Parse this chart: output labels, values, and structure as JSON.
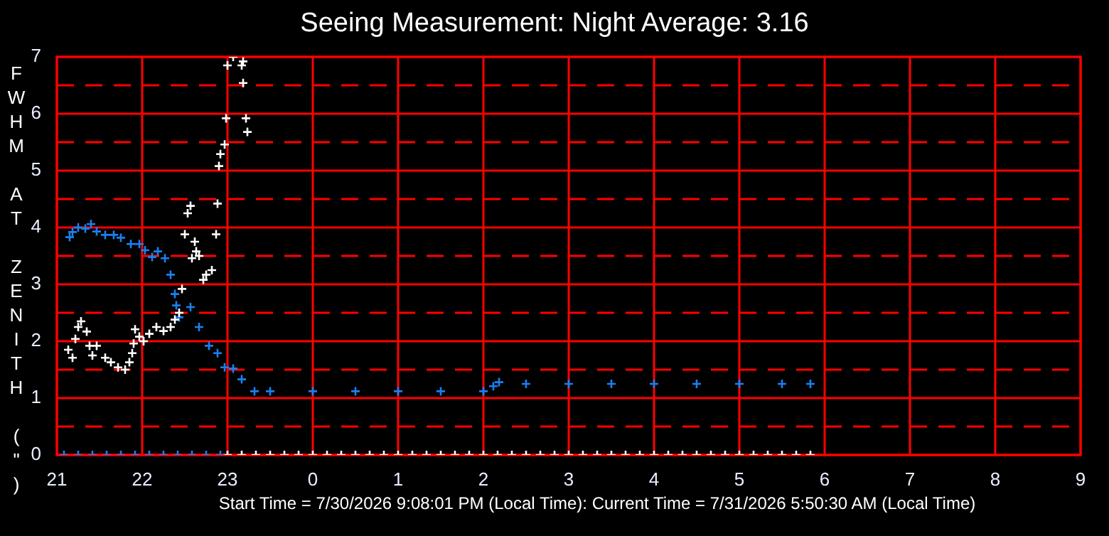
{
  "chart_data": {
    "type": "scatter",
    "title": "Seeing Measurement: Night Average: 3.16",
    "ylabel": "FWHM AT ZENITH (\")",
    "annotations": [
      "Start Time = 7/30/2026 9:08:01 PM (Local Time): Current Time = 7/31/2026 5:50:30 AM (Local Time)"
    ],
    "xlim": [
      "2026-07-30T21:00",
      "2026-07-31T09:00"
    ],
    "xticks": [
      {
        "value": "2026-07-30T21:00",
        "label": "21"
      },
      {
        "value": "2026-07-30T22:00",
        "label": "22"
      },
      {
        "value": "2026-07-30T23:00",
        "label": "23"
      },
      {
        "value": "2026-07-31T00:00",
        "label": "0"
      },
      {
        "value": "2026-07-31T01:00",
        "label": "1"
      },
      {
        "value": "2026-07-31T02:00",
        "label": "2"
      },
      {
        "value": "2026-07-31T03:00",
        "label": "3"
      },
      {
        "value": "2026-07-31T04:00",
        "label": "4"
      },
      {
        "value": "2026-07-31T05:00",
        "label": "5"
      },
      {
        "value": "2026-07-31T06:00",
        "label": "6"
      },
      {
        "value": "2026-07-31T07:00",
        "label": "7"
      },
      {
        "value": "2026-07-31T08:00",
        "label": "8"
      },
      {
        "value": "2026-07-31T09:00",
        "label": "9"
      }
    ],
    "ylim": [
      0,
      7
    ],
    "yticks": [
      0,
      {
        "value": 0.5,
        "label": null
      },
      1,
      {
        "value": 1.5,
        "label": null
      },
      2,
      {
        "value": 2.5,
        "label": null
      },
      3,
      {
        "value": 3.5,
        "label": null
      },
      4,
      {
        "value": 4.5,
        "label": null
      },
      5,
      {
        "value": 5.5,
        "label": null
      },
      6,
      {
        "value": 6.5,
        "label": null
      },
      7
    ],
    "grid": true,
    "marker": "cross",
    "series": [
      {
        "color": "#ffffff",
        "x": [
          "2026-07-30T21:08",
          "2026-07-30T21:11",
          "2026-07-30T21:13",
          "2026-07-30T21:15",
          "2026-07-30T21:17",
          "2026-07-30T21:21",
          "2026-07-30T21:23",
          "2026-07-30T21:25",
          "2026-07-30T21:28",
          "2026-07-30T21:34",
          "2026-07-30T21:38",
          "2026-07-30T21:43",
          "2026-07-30T21:48",
          "2026-07-30T21:51",
          "2026-07-30T21:53",
          "2026-07-30T21:54",
          "2026-07-30T21:55",
          "2026-07-30T21:58",
          "2026-07-30T22:01",
          "2026-07-30T22:05",
          "2026-07-30T22:10",
          "2026-07-30T22:15",
          "2026-07-30T22:20",
          "2026-07-30T22:23",
          "2026-07-30T22:26",
          "2026-07-30T22:28",
          "2026-07-30T22:30",
          "2026-07-30T22:32",
          "2026-07-30T22:34",
          "2026-07-30T22:35",
          "2026-07-30T22:37",
          "2026-07-30T22:38",
          "2026-07-30T22:40",
          "2026-07-30T22:43",
          "2026-07-30T22:45",
          "2026-07-30T22:49",
          "2026-07-30T22:52",
          "2026-07-30T22:53",
          "2026-07-30T22:54",
          "2026-07-30T22:55",
          "2026-07-30T22:58",
          "2026-07-30T22:59",
          "2026-07-30T23:00",
          "2026-07-30T23:04",
          "2026-07-30T23:10",
          "2026-07-30T23:11",
          "2026-07-30T23:11",
          "2026-07-30T23:13",
          "2026-07-30T23:14"
        ],
        "values": [
          1.85,
          1.71,
          2.04,
          2.25,
          2.35,
          2.17,
          1.92,
          1.75,
          1.92,
          1.71,
          1.63,
          1.54,
          1.5,
          1.63,
          1.79,
          1.96,
          2.21,
          2.08,
          2.0,
          2.13,
          2.25,
          2.18,
          2.25,
          2.38,
          2.5,
          2.92,
          3.88,
          4.25,
          4.38,
          3.46,
          3.75,
          3.58,
          3.5,
          3.08,
          3.17,
          3.25,
          3.88,
          4.42,
          5.08,
          5.29,
          5.46,
          5.92,
          6.85,
          7,
          6.85,
          6.92,
          6.54,
          5.92,
          5.68
        ]
      },
      {
        "color": "#1a80f0",
        "x": [
          "2026-07-30T21:09",
          "2026-07-30T21:11",
          "2026-07-30T21:15",
          "2026-07-30T21:20",
          "2026-07-30T21:24",
          "2026-07-30T21:28",
          "2026-07-30T21:34",
          "2026-07-30T21:40",
          "2026-07-30T21:45",
          "2026-07-30T21:52",
          "2026-07-30T21:58",
          "2026-07-30T22:02",
          "2026-07-30T22:07",
          "2026-07-30T22:11",
          "2026-07-30T22:16",
          "2026-07-30T22:20",
          "2026-07-30T22:23",
          "2026-07-30T22:24",
          "2026-07-30T22:26",
          "2026-07-30T22:34",
          "2026-07-30T22:40",
          "2026-07-30T22:47",
          "2026-07-30T22:53",
          "2026-07-30T22:58",
          "2026-07-30T23:04",
          "2026-07-30T23:10",
          "2026-07-30T23:19",
          "2026-07-30T23:30",
          "2026-07-31T00:00",
          "2026-07-31T00:30",
          "2026-07-31T01:00",
          "2026-07-31T01:30",
          "2026-07-31T02:00",
          "2026-07-31T02:07",
          "2026-07-31T02:11",
          "2026-07-31T02:30",
          "2026-07-31T03:00",
          "2026-07-31T03:30",
          "2026-07-31T04:00",
          "2026-07-31T04:30",
          "2026-07-31T05:00",
          "2026-07-31T05:30",
          "2026-07-31T05:50"
        ],
        "values": [
          3.83,
          3.92,
          4.0,
          3.98,
          4.06,
          3.93,
          3.87,
          3.87,
          3.82,
          3.71,
          3.71,
          3.6,
          3.48,
          3.58,
          3.46,
          3.17,
          2.83,
          2.63,
          2.42,
          2.6,
          2.25,
          1.92,
          1.79,
          1.54,
          1.52,
          1.33,
          1.12,
          1.12,
          1.12,
          1.12,
          1.12,
          1.12,
          1.12,
          1.21,
          1.28,
          1.25,
          1.25,
          1.25,
          1.25,
          1.25,
          1.25,
          1.25,
          1.25
        ]
      },
      {
        "color": "#1a80f0",
        "x": [
          "2026-07-30T21:05",
          "2026-07-30T21:15",
          "2026-07-30T21:25",
          "2026-07-30T21:35",
          "2026-07-30T21:45",
          "2026-07-30T21:55",
          "2026-07-30T22:05",
          "2026-07-30T22:15",
          "2026-07-30T22:25",
          "2026-07-30T22:35",
          "2026-07-30T22:45",
          "2026-07-30T22:55"
        ],
        "values": [
          0,
          0,
          0,
          0,
          0,
          0,
          0,
          0,
          0,
          0,
          0,
          0
        ]
      },
      {
        "color": "#ffffff",
        "x": [
          "2026-07-30T23:00",
          "2026-07-30T23:10",
          "2026-07-30T23:20",
          "2026-07-30T23:30",
          "2026-07-30T23:40",
          "2026-07-30T23:50",
          "2026-07-31T00:00",
          "2026-07-31T00:10",
          "2026-07-31T00:20",
          "2026-07-31T00:30",
          "2026-07-31T00:40",
          "2026-07-31T00:50",
          "2026-07-31T01:00",
          "2026-07-31T01:10",
          "2026-07-31T01:20",
          "2026-07-31T01:30",
          "2026-07-31T01:40",
          "2026-07-31T01:50",
          "2026-07-31T02:00",
          "2026-07-31T02:10",
          "2026-07-31T02:20",
          "2026-07-31T02:30",
          "2026-07-31T02:40",
          "2026-07-31T02:50",
          "2026-07-31T03:00",
          "2026-07-31T03:10",
          "2026-07-31T03:20",
          "2026-07-31T03:30",
          "2026-07-31T03:40",
          "2026-07-31T03:50",
          "2026-07-31T04:00",
          "2026-07-31T04:10",
          "2026-07-31T04:20",
          "2026-07-31T04:30",
          "2026-07-31T04:40",
          "2026-07-31T04:50",
          "2026-07-31T05:00",
          "2026-07-31T05:10",
          "2026-07-31T05:20",
          "2026-07-31T05:30",
          "2026-07-31T05:40",
          "2026-07-31T05:50"
        ],
        "values": [
          0,
          0,
          0,
          0,
          0,
          0,
          0,
          0,
          0,
          0,
          0,
          0,
          0,
          0,
          0,
          0,
          0,
          0,
          0,
          0,
          0,
          0,
          0,
          0,
          0,
          0,
          0,
          0,
          0,
          0,
          0,
          0,
          0,
          0,
          0,
          0,
          0,
          0,
          0,
          0,
          0,
          0
        ]
      }
    ]
  }
}
